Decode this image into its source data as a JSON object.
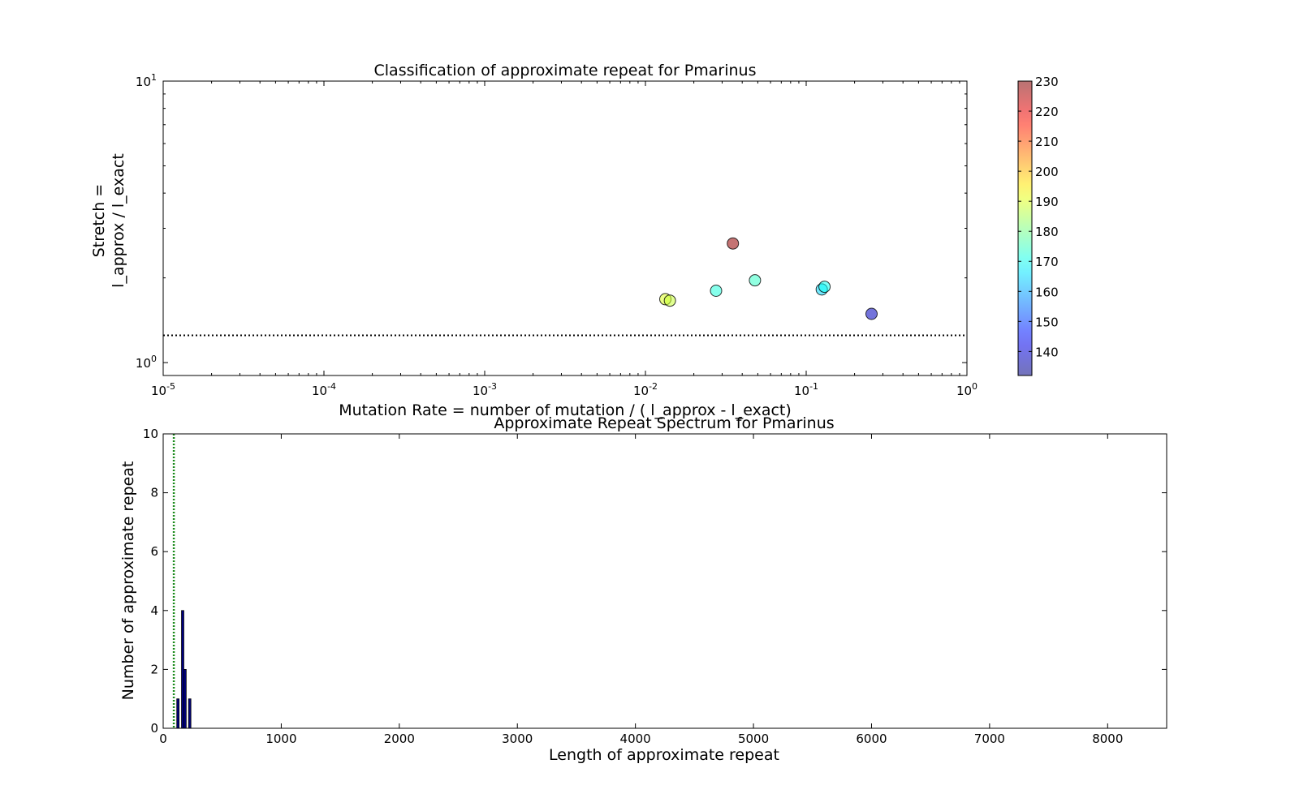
{
  "chart_data": [
    {
      "type": "scatter",
      "title": "Classification of approximate repeat for Pmarinus",
      "xlabel": "Mutation Rate = number of mutation / ( l_approx - l_exact)",
      "ylabel_lines": [
        "Stretch =",
        "l_approx / l_exact"
      ],
      "xscale": "log",
      "yscale": "log",
      "xlim": [
        1e-05,
        1
      ],
      "ylim": [
        0.9,
        10
      ],
      "x_ticks": [
        {
          "value": 1e-05,
          "base": "10",
          "exp": "-5"
        },
        {
          "value": 0.0001,
          "base": "10",
          "exp": "-4"
        },
        {
          "value": 0.001,
          "base": "10",
          "exp": "-3"
        },
        {
          "value": 0.01,
          "base": "10",
          "exp": "-2"
        },
        {
          "value": 0.1,
          "base": "10",
          "exp": "-1"
        },
        {
          "value": 1,
          "base": "10",
          "exp": "0"
        }
      ],
      "y_ticks": [
        {
          "value": 1,
          "base": "10",
          "exp": "0"
        },
        {
          "value": 10,
          "base": "10",
          "exp": "1"
        }
      ],
      "threshold_y": 1.25,
      "colorbar": {
        "range": [
          132,
          230
        ],
        "ticks": [
          140,
          150,
          160,
          170,
          180,
          190,
          200,
          210,
          220,
          230
        ],
        "colormap": "jet"
      },
      "points": [
        {
          "x": 0.0133,
          "y": 1.68,
          "value": 190
        },
        {
          "x": 0.0142,
          "y": 1.66,
          "value": 188
        },
        {
          "x": 0.0275,
          "y": 1.8,
          "value": 172
        },
        {
          "x": 0.035,
          "y": 2.65,
          "value": 228
        },
        {
          "x": 0.048,
          "y": 1.96,
          "value": 174
        },
        {
          "x": 0.125,
          "y": 1.82,
          "value": 165
        },
        {
          "x": 0.13,
          "y": 1.86,
          "value": 170
        },
        {
          "x": 0.255,
          "y": 1.49,
          "value": 138
        }
      ]
    },
    {
      "type": "bar",
      "title": "Approximate Repeat Spectrum for Pmarinus",
      "xlabel": "Length of approximate repeat",
      "ylabel": "Number of approximate repeat",
      "xlim": [
        0,
        8500
      ],
      "ylim": [
        0,
        10
      ],
      "x_ticks": [
        0,
        1000,
        2000,
        3000,
        4000,
        5000,
        6000,
        7000,
        8000
      ],
      "y_ticks": [
        0,
        2,
        4,
        6,
        8,
        10
      ],
      "threshold_x": 90,
      "bar_width": 20,
      "bars": [
        {
          "x": 125,
          "value": 1
        },
        {
          "x": 165,
          "value": 4
        },
        {
          "x": 185,
          "value": 2
        },
        {
          "x": 225,
          "value": 1
        }
      ]
    }
  ]
}
